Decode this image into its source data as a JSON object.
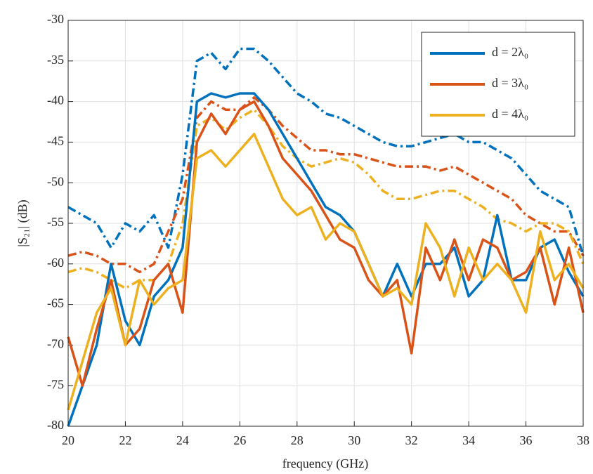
{
  "chart_data": {
    "type": "line",
    "xlabel": "frequency (GHz)",
    "ylabel": "|S₂₁| (dB)",
    "x": [
      20,
      20.5,
      21,
      21.5,
      22,
      22.5,
      23,
      23.5,
      24,
      24.5,
      25,
      25.5,
      26,
      26.5,
      27,
      27.5,
      28,
      28.5,
      29,
      29.5,
      30,
      30.5,
      31,
      31.5,
      32,
      32.5,
      33,
      33.5,
      34,
      34.5,
      35,
      35.5,
      36,
      36.5,
      37,
      37.5,
      38
    ],
    "xlim": [
      20,
      38
    ],
    "xticks": [
      20,
      22,
      24,
      26,
      28,
      30,
      32,
      34,
      36,
      38
    ],
    "ylim": [
      -80,
      -30
    ],
    "yticks": [
      -80,
      -75,
      -70,
      -65,
      -60,
      -55,
      -50,
      -45,
      -40,
      -35,
      -30
    ],
    "grid": true,
    "legend": "upper right",
    "series": [
      {
        "name": "d = 2λ₀",
        "color": "#0072BD",
        "values": [
          -80,
          -75,
          -70,
          -60,
          -67,
          -70,
          -64,
          -62,
          -58,
          -40,
          -39,
          -39.5,
          -39,
          -39,
          -41,
          -44,
          -47,
          -50,
          -53,
          -54,
          -56,
          -60,
          -64,
          -60,
          -64,
          -60,
          -60,
          -58,
          -64,
          -62,
          -54,
          -62,
          -62,
          -58,
          -57,
          -61,
          -64
        ]
      },
      {
        "name": "d = 3λ₀",
        "color": "#D95319",
        "values": [
          -69,
          -75,
          -68,
          -62,
          -70,
          -68,
          -62,
          -60,
          -66,
          -45,
          -41.5,
          -44,
          -41,
          -40,
          -43,
          -47,
          -49,
          -51,
          -54,
          -57,
          -58,
          -62,
          -64,
          -62,
          -71,
          -58,
          -62,
          -57,
          -62,
          -57,
          -58,
          -62,
          -61,
          -58,
          -65,
          -58,
          -66
        ]
      },
      {
        "name": "d = 4λ₀",
        "color": "#EDB120",
        "values": [
          -78,
          -72,
          -66,
          -63,
          -70,
          -62,
          -65,
          -63,
          -62,
          -47,
          -46,
          -48,
          -46,
          -44,
          -48,
          -52,
          -54,
          -53,
          -57,
          -55,
          -56,
          -60,
          -64,
          -63,
          -65,
          -55,
          -58,
          -64,
          -58,
          -62,
          -60,
          -62,
          -66,
          -56,
          -62,
          -60,
          -63
        ]
      },
      {
        "color": "#0072BD",
        "dash": "dashdot",
        "values": [
          -53,
          -54,
          -55,
          -58,
          -55,
          -56,
          -54,
          -58,
          -49,
          -35,
          -34,
          -36,
          -33.5,
          -33.5,
          -35,
          -37,
          -39,
          -40,
          -41.5,
          -42,
          -43,
          -44,
          -45,
          -45.5,
          -45.5,
          -45,
          -44.5,
          -44,
          -45,
          -45,
          -46,
          -47,
          -49,
          -51,
          -52,
          -53,
          -59
        ]
      },
      {
        "color": "#D95319",
        "dash": "dashdot",
        "values": [
          -59,
          -58.5,
          -59,
          -60,
          -60,
          -61,
          -60,
          -56,
          -52,
          -42,
          -40,
          -41,
          -41,
          -39.5,
          -41,
          -43,
          -44.5,
          -46,
          -46,
          -46.5,
          -46.5,
          -47,
          -47.5,
          -48,
          -48,
          -48,
          -48.5,
          -48,
          -49,
          -50,
          -51,
          -52,
          -54,
          -55,
          -56,
          -56,
          -59
        ]
      },
      {
        "color": "#EDB120",
        "dash": "dashdot",
        "values": [
          -61,
          -60.5,
          -61,
          -62,
          -63,
          -62,
          -62,
          -60,
          -55,
          -43,
          -42,
          -43.5,
          -42,
          -41,
          -43,
          -45.5,
          -47,
          -48,
          -47.5,
          -47,
          -47.5,
          -49,
          -51,
          -52,
          -52,
          -51.5,
          -51,
          -51,
          -52,
          -53,
          -54.5,
          -55,
          -56,
          -55,
          -55,
          -56,
          -60
        ]
      }
    ]
  }
}
